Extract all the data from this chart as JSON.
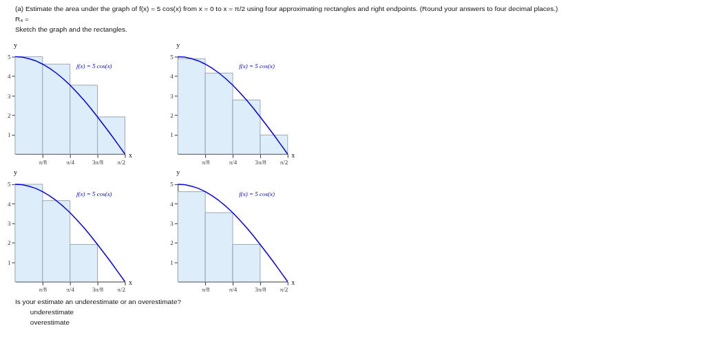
{
  "chart_data": [
    {
      "type": "histogram",
      "title": "(a) Estimate the area under the graph of f(x) = 5 cos(x) from x = 0 to x = π/2 using four approximating rectangles and right endpoints. (Round your answers to four decimal places.)",
      "annotations": [
        "R₄ =",
        "Sketch the graph and the rectangles."
      ],
      "xlabel": "x",
      "ylabel": "y",
      "bins": [
        0,
        0.3927,
        0.7854,
        1.1781,
        1.5708
      ],
      "values": [
        5,
        4.62,
        3.54,
        1.91
      ],
      "color": "#deedfa",
      "xlim": [
        0,
        1.5708
      ],
      "xticks": [
        {
          "value": 0.3927,
          "label": "π/8"
        },
        {
          "value": 0.7854,
          "label": "π/4"
        },
        {
          "value": 1.1781,
          "label": "3π/8"
        },
        {
          "value": 1.5708,
          "label": "π/2"
        }
      ],
      "ylim": [
        0,
        5
      ],
      "yticks": [
        1,
        2,
        3,
        4,
        5
      ],
      "grid": false,
      "legend": false,
      "series": [
        {
          "name": "f(x) = 5 cos(x)",
          "type": "line",
          "color": "#0000ee",
          "x": [
            0,
            0.0982,
            0.1963,
            0.2945,
            0.3927,
            0.4909,
            0.589,
            0.6872,
            0.7854,
            0.8836,
            0.9817,
            1.0799,
            1.1781,
            1.2763,
            1.3744,
            1.4726,
            1.5708
          ],
          "values": [
            5,
            4.98,
            4.9,
            4.79,
            4.62,
            4.41,
            4.16,
            3.87,
            3.54,
            3.17,
            2.78,
            2.36,
            1.91,
            1.45,
            0.98,
            0.49,
            0
          ]
        }
      ]
    },
    {
      "type": "histogram",
      "xlabel": "x",
      "ylabel": "y",
      "bins": [
        0,
        0.3927,
        0.7854,
        1.1781,
        1.5708
      ],
      "values": [
        4.9,
        4.16,
        2.78,
        0.98
      ],
      "color": "#deedfa",
      "xlim": [
        0,
        1.5708
      ],
      "xticks": [
        {
          "value": 0.3927,
          "label": "π/8"
        },
        {
          "value": 0.7854,
          "label": "π/4"
        },
        {
          "value": 1.1781,
          "label": "3π/8"
        },
        {
          "value": 1.5708,
          "label": "π/2"
        }
      ],
      "ylim": [
        0,
        5
      ],
      "yticks": [
        1,
        2,
        3,
        4,
        5
      ],
      "grid": false,
      "legend": false,
      "series": [
        {
          "name": "f(x) = 5 cos(x)",
          "type": "line",
          "color": "#0000ee",
          "x": [
            0,
            0.0982,
            0.1963,
            0.2945,
            0.3927,
            0.4909,
            0.589,
            0.6872,
            0.7854,
            0.8836,
            0.9817,
            1.0799,
            1.1781,
            1.2763,
            1.3744,
            1.4726,
            1.5708
          ],
          "values": [
            5,
            4.98,
            4.9,
            4.79,
            4.62,
            4.41,
            4.16,
            3.87,
            3.54,
            3.17,
            2.78,
            2.36,
            1.91,
            1.45,
            0.98,
            0.49,
            0
          ]
        }
      ]
    },
    {
      "type": "histogram",
      "xlabel": "x",
      "ylabel": "y",
      "bins": [
        0,
        0.3927,
        0.7854,
        1.1781,
        1.5708
      ],
      "values": [
        5,
        4.16,
        1.91,
        null
      ],
      "color": "#deedfa",
      "xlim": [
        0,
        1.5708
      ],
      "xticks": [
        {
          "value": 0.3927,
          "label": "π/8"
        },
        {
          "value": 0.7854,
          "label": "π/4"
        },
        {
          "value": 1.1781,
          "label": "3π/8"
        },
        {
          "value": 1.5708,
          "label": "π/2"
        }
      ],
      "ylim": [
        0,
        5
      ],
      "yticks": [
        1,
        2,
        3,
        4,
        5
      ],
      "grid": false,
      "legend": false,
      "series": [
        {
          "name": "f(x) = 5 cos(x)",
          "type": "line",
          "color": "#0000ee",
          "x": [
            0,
            0.0982,
            0.1963,
            0.2945,
            0.3927,
            0.4909,
            0.589,
            0.6872,
            0.7854,
            0.8836,
            0.9817,
            1.0799,
            1.1781,
            1.2763,
            1.3744,
            1.4726,
            1.5708
          ],
          "values": [
            5,
            4.98,
            4.9,
            4.79,
            4.62,
            4.41,
            4.16,
            3.87,
            3.54,
            3.17,
            2.78,
            2.36,
            1.91,
            1.45,
            0.98,
            0.49,
            0
          ]
        }
      ]
    },
    {
      "type": "histogram",
      "xlabel": "x",
      "ylabel": "y",
      "annotations": [
        "Is your estimate an underestimate or an overestimate?",
        "underestimate",
        "overestimate"
      ],
      "bins": [
        0,
        0.3927,
        0.7854,
        1.1781,
        1.5708
      ],
      "values": [
        4.62,
        3.54,
        1.91,
        null
      ],
      "color": "#deedfa",
      "xlim": [
        0,
        1.5708
      ],
      "xticks": [
        {
          "value": 0.3927,
          "label": "π/8"
        },
        {
          "value": 0.7854,
          "label": "π/4"
        },
        {
          "value": 1.1781,
          "label": "3π/8"
        },
        {
          "value": 1.5708,
          "label": "π/2"
        }
      ],
      "ylim": [
        0,
        5
      ],
      "yticks": [
        1,
        2,
        3,
        4,
        5
      ],
      "grid": false,
      "legend": false,
      "series": [
        {
          "name": "f(x) = 5 cos(x)",
          "type": "line",
          "color": "#0000ee",
          "x": [
            0,
            0.0982,
            0.1963,
            0.2945,
            0.3927,
            0.4909,
            0.589,
            0.6872,
            0.7854,
            0.8836,
            0.9817,
            1.0799,
            1.1781,
            1.2763,
            1.3744,
            1.4726,
            1.5708
          ],
          "values": [
            5,
            4.98,
            4.9,
            4.79,
            4.62,
            4.41,
            4.16,
            3.87,
            3.54,
            3.17,
            2.78,
            2.36,
            1.91,
            1.45,
            0.98,
            0.49,
            0
          ]
        }
      ]
    }
  ]
}
